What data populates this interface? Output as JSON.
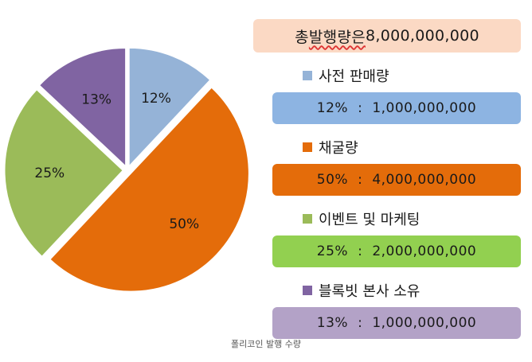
{
  "chart_data": {
    "type": "pie",
    "slices": [
      {
        "label": "사전 판매량",
        "value": 12,
        "display": "12%",
        "amount": "1,000,000,000",
        "color": "#95b3d7",
        "box_color": "#8db4e2"
      },
      {
        "label": "채굴량",
        "value": 50,
        "display": "50%",
        "amount": "4,000,000,000",
        "color": "#e46c0a",
        "box_color": "#e46c0a"
      },
      {
        "label": "이벤트 및 마케팅",
        "value": 25,
        "display": "25%",
        "amount": "2,000,000,000",
        "color": "#9bbb59",
        "box_color": "#92d050"
      },
      {
        "label": "블록빗 본사 소유",
        "value": 13,
        "display": "13%",
        "amount": "1,000,000,000",
        "color": "#8064a2",
        "box_color": "#b3a2c7"
      }
    ],
    "legend_placement": "right"
  },
  "total": {
    "prefix": "총 ",
    "word": "발행량은",
    "value": " 8,000,000,000"
  },
  "separator": ":",
  "caption": "폴리코인 발행 수량"
}
